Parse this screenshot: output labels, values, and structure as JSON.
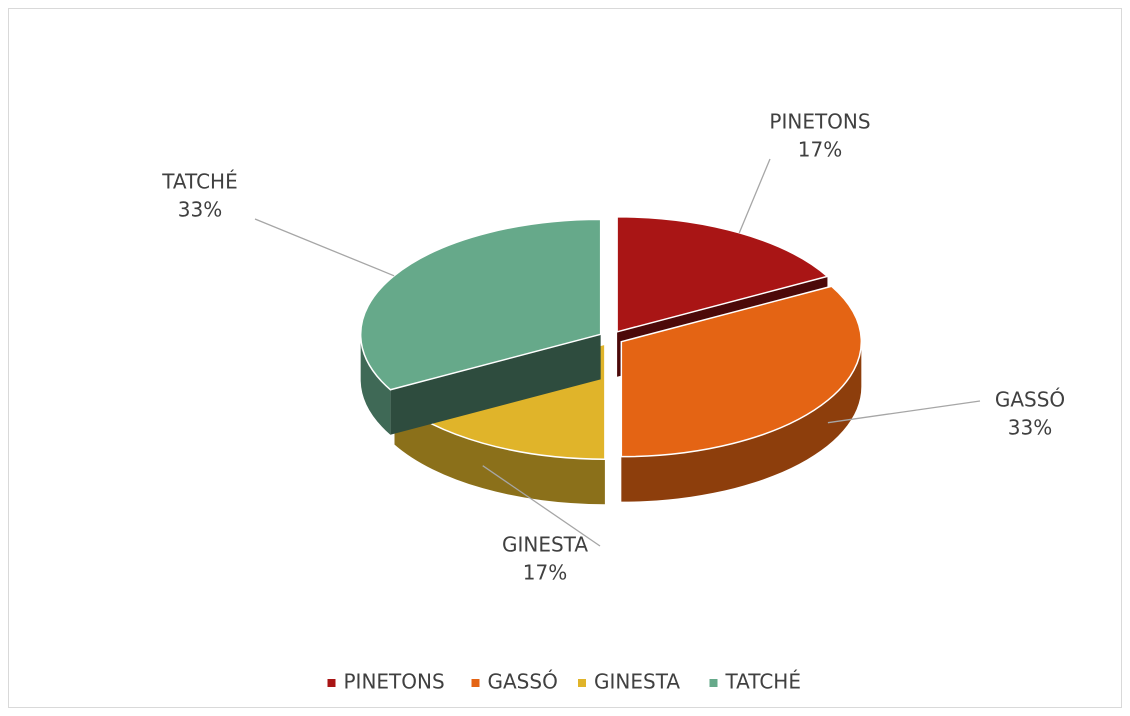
{
  "chart_data": {
    "type": "pie",
    "categories": [
      "PINETONS",
      "GASSÓ",
      "GINESTA",
      "TATCHÉ"
    ],
    "values": [
      17,
      33,
      17,
      33
    ],
    "value_labels": [
      "17%",
      "33%",
      "17%",
      "33%"
    ],
    "colors": [
      "#a91515",
      "#e46414",
      "#e0b42a",
      "#66a98a"
    ],
    "legend": "bottom"
  }
}
